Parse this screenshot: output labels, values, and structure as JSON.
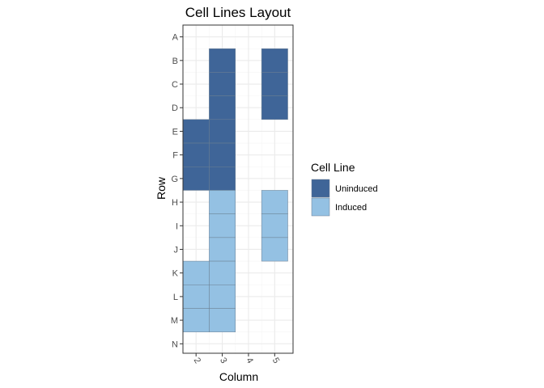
{
  "chart_data": {
    "type": "heatmap",
    "title": "Cell Lines Layout",
    "xlabel": "Column",
    "ylabel": "Row",
    "x_categories": [
      "2",
      "3",
      "4",
      "5"
    ],
    "y_categories": [
      "A",
      "B",
      "C",
      "D",
      "E",
      "F",
      "G",
      "H",
      "I",
      "J",
      "K",
      "L",
      "M",
      "N"
    ],
    "xlim": [
      1.5,
      5.7
    ],
    "ylim": [
      0.5,
      14.4
    ],
    "grid": true,
    "legend": {
      "title": "Cell Line",
      "placement": "right",
      "entries": [
        {
          "label": "Uninduced",
          "color": "#3f6598"
        },
        {
          "label": "Induced",
          "color": "#94c1e3"
        }
      ]
    },
    "cells": [
      {
        "x": 3,
        "y": "B",
        "group": "Uninduced"
      },
      {
        "x": 3,
        "y": "C",
        "group": "Uninduced"
      },
      {
        "x": 3,
        "y": "D",
        "group": "Uninduced"
      },
      {
        "x": 3,
        "y": "E",
        "group": "Uninduced"
      },
      {
        "x": 3,
        "y": "F",
        "group": "Uninduced"
      },
      {
        "x": 3,
        "y": "G",
        "group": "Uninduced"
      },
      {
        "x": 2,
        "y": "E",
        "group": "Uninduced"
      },
      {
        "x": 2,
        "y": "F",
        "group": "Uninduced"
      },
      {
        "x": 2,
        "y": "G",
        "group": "Uninduced"
      },
      {
        "x": 5,
        "y": "B",
        "group": "Uninduced"
      },
      {
        "x": 5,
        "y": "C",
        "group": "Uninduced"
      },
      {
        "x": 5,
        "y": "D",
        "group": "Uninduced"
      },
      {
        "x": 3,
        "y": "H",
        "group": "Induced"
      },
      {
        "x": 3,
        "y": "I",
        "group": "Induced"
      },
      {
        "x": 3,
        "y": "J",
        "group": "Induced"
      },
      {
        "x": 3,
        "y": "K",
        "group": "Induced"
      },
      {
        "x": 3,
        "y": "L",
        "group": "Induced"
      },
      {
        "x": 3,
        "y": "M",
        "group": "Induced"
      },
      {
        "x": 2,
        "y": "K",
        "group": "Induced"
      },
      {
        "x": 2,
        "y": "L",
        "group": "Induced"
      },
      {
        "x": 2,
        "y": "M",
        "group": "Induced"
      },
      {
        "x": 5,
        "y": "H",
        "group": "Induced"
      },
      {
        "x": 5,
        "y": "I",
        "group": "Induced"
      },
      {
        "x": 5,
        "y": "J",
        "group": "Induced"
      }
    ],
    "colors": {
      "panel_border": "#333333",
      "grid_major": "#ebebeb",
      "grid_minor": "#f5f5f5",
      "cell_border": "#6b7f92"
    }
  }
}
